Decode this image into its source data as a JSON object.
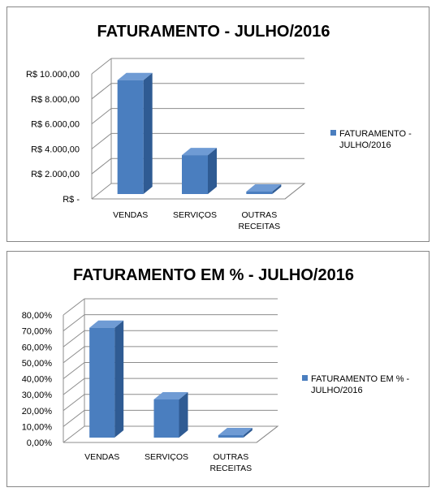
{
  "chart_data": [
    {
      "type": "bar",
      "title": "FATURAMENTO - JULHO/2016",
      "categories": [
        [
          "VENDAS"
        ],
        [
          "SERVIÇOS"
        ],
        [
          "OUTRAS",
          "RECEITAS"
        ]
      ],
      "series": [
        {
          "name": "FATURAMENTO - JULHO/2016",
          "legend_lines": [
            "FATURAMENTO -",
            "JULHO/2016"
          ],
          "values": [
            9500,
            3500,
            200
          ]
        }
      ],
      "ylim": [
        0,
        10000
      ],
      "y_ticks": [
        0,
        2000,
        4000,
        6000,
        8000,
        10000
      ],
      "y_tick_labels": [
        "R$ -",
        "R$ 2.000,00",
        "R$ 4.000,00",
        "R$ 6.000,00",
        "R$ 8.000,00",
        "R$ 10.000,00"
      ],
      "grid": true,
      "legend_position": "right",
      "style": "3d-column",
      "colors": {
        "front": "#4a7ebf",
        "side": "#2f5b93",
        "top": "#6f9bd4",
        "grid": "#8c8c8c"
      }
    },
    {
      "type": "bar",
      "title": "FATURAMENTO EM % - JULHO/2016",
      "categories": [
        [
          "VENDAS"
        ],
        [
          "SERVIÇOS"
        ],
        [
          "OUTRAS",
          "RECEITAS"
        ]
      ],
      "series": [
        {
          "name": "FATURAMENTO EM % - JULHO/2016",
          "legend_lines": [
            "FATURAMENTO EM % -",
            "JULHO/2016"
          ],
          "values": [
            72,
            27,
            1.5
          ]
        }
      ],
      "ylim": [
        0,
        80
      ],
      "y_ticks": [
        0,
        10,
        20,
        30,
        40,
        50,
        60,
        70,
        80
      ],
      "y_tick_labels": [
        "0,00%",
        "10,00%",
        "20,00%",
        "30,00%",
        "40,00%",
        "50,00%",
        "60,00%",
        "70,00%",
        "80,00%"
      ],
      "grid": true,
      "legend_position": "right",
      "style": "3d-column",
      "colors": {
        "front": "#4a7ebf",
        "side": "#2f5b93",
        "top": "#6f9bd4",
        "grid": "#8c8c8c"
      }
    }
  ]
}
